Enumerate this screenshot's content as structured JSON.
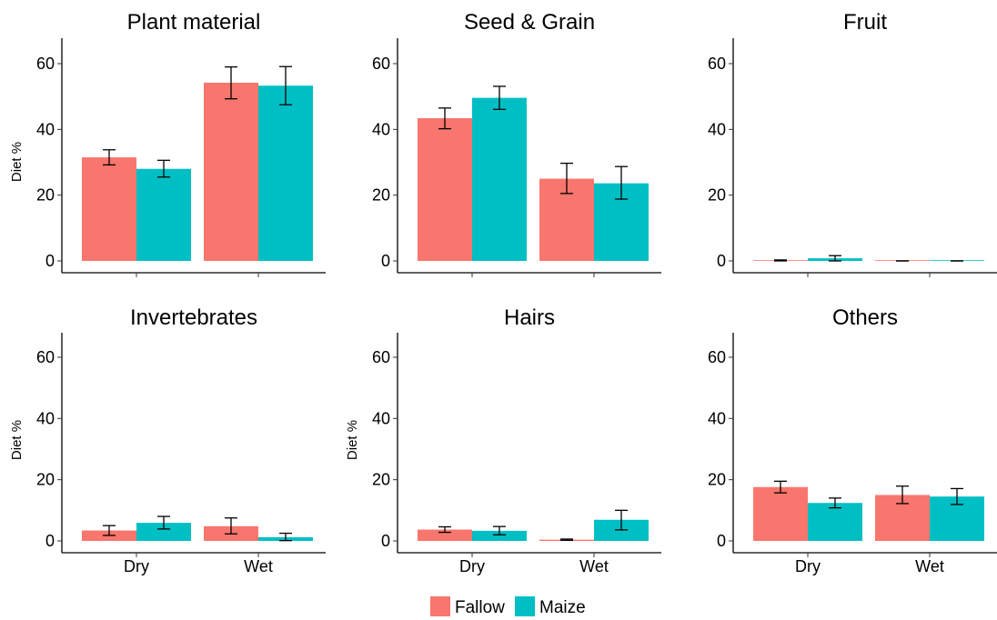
{
  "chart_data": {
    "type": "bar",
    "facets": [
      {
        "title": "Plant material",
        "categories": [
          "Dry",
          "Wet"
        ],
        "series": [
          {
            "name": "Fallow",
            "values": [
              31.5,
              54.2
            ],
            "err_low": [
              29.2,
              49.3
            ],
            "err_high": [
              33.8,
              59.0
            ]
          },
          {
            "name": "Maize",
            "values": [
              28.0,
              53.3
            ],
            "err_low": [
              25.5,
              47.5
            ],
            "err_high": [
              30.6,
              59.1
            ]
          }
        ]
      },
      {
        "title": "Seed & Grain",
        "categories": [
          "Dry",
          "Wet"
        ],
        "series": [
          {
            "name": "Fallow",
            "values": [
              43.4,
              25.0
            ],
            "err_low": [
              40.2,
              20.5
            ],
            "err_high": [
              46.5,
              29.7
            ]
          },
          {
            "name": "Maize",
            "values": [
              49.6,
              23.6
            ],
            "err_low": [
              46.1,
              18.8
            ],
            "err_high": [
              53.1,
              28.7
            ]
          }
        ]
      },
      {
        "title": "Fruit",
        "categories": [
          "Dry",
          "Wet"
        ],
        "series": [
          {
            "name": "Fallow",
            "values": [
              0.2,
              0.0
            ],
            "err_low": [
              0.0,
              0.0
            ],
            "err_high": [
              0.3,
              0.0
            ]
          },
          {
            "name": "Maize",
            "values": [
              0.8,
              0.0
            ],
            "err_low": [
              0.0,
              0.0
            ],
            "err_high": [
              1.6,
              0.0
            ]
          }
        ]
      },
      {
        "title": "Invertebrates",
        "categories": [
          "Dry",
          "Wet"
        ],
        "series": [
          {
            "name": "Fallow",
            "values": [
              3.4,
              4.8
            ],
            "err_low": [
              1.8,
              2.3
            ],
            "err_high": [
              5.0,
              7.5
            ]
          },
          {
            "name": "Maize",
            "values": [
              5.9,
              1.2
            ],
            "err_low": [
              3.9,
              0.1
            ],
            "err_high": [
              8.0,
              2.5
            ]
          }
        ]
      },
      {
        "title": "Hairs",
        "categories": [
          "Dry",
          "Wet"
        ],
        "series": [
          {
            "name": "Fallow",
            "values": [
              3.7,
              0.4
            ],
            "err_low": [
              2.8,
              0.2
            ],
            "err_high": [
              4.6,
              0.6
            ]
          },
          {
            "name": "Maize",
            "values": [
              3.3,
              6.9
            ],
            "err_low": [
              2.0,
              3.6
            ],
            "err_high": [
              4.7,
              10.0
            ]
          }
        ]
      },
      {
        "title": "Others",
        "categories": [
          "Dry",
          "Wet"
        ],
        "series": [
          {
            "name": "Fallow",
            "values": [
              17.6,
              15.0
            ],
            "err_low": [
              15.7,
              12.2
            ],
            "err_high": [
              19.5,
              17.9
            ]
          },
          {
            "name": "Maize",
            "values": [
              12.4,
              14.5
            ],
            "err_low": [
              10.8,
              11.9
            ],
            "err_high": [
              14.0,
              17.1
            ]
          }
        ]
      }
    ],
    "ylabel": "Diet %",
    "ylim": [
      0,
      68
    ],
    "yticks": [
      0,
      20,
      40,
      60
    ],
    "legend": {
      "position": "bottom",
      "entries": [
        "Fallow",
        "Maize"
      ]
    },
    "colors": {
      "Fallow": "#F8766D",
      "Maize": "#00BFC4"
    },
    "grid": false
  }
}
